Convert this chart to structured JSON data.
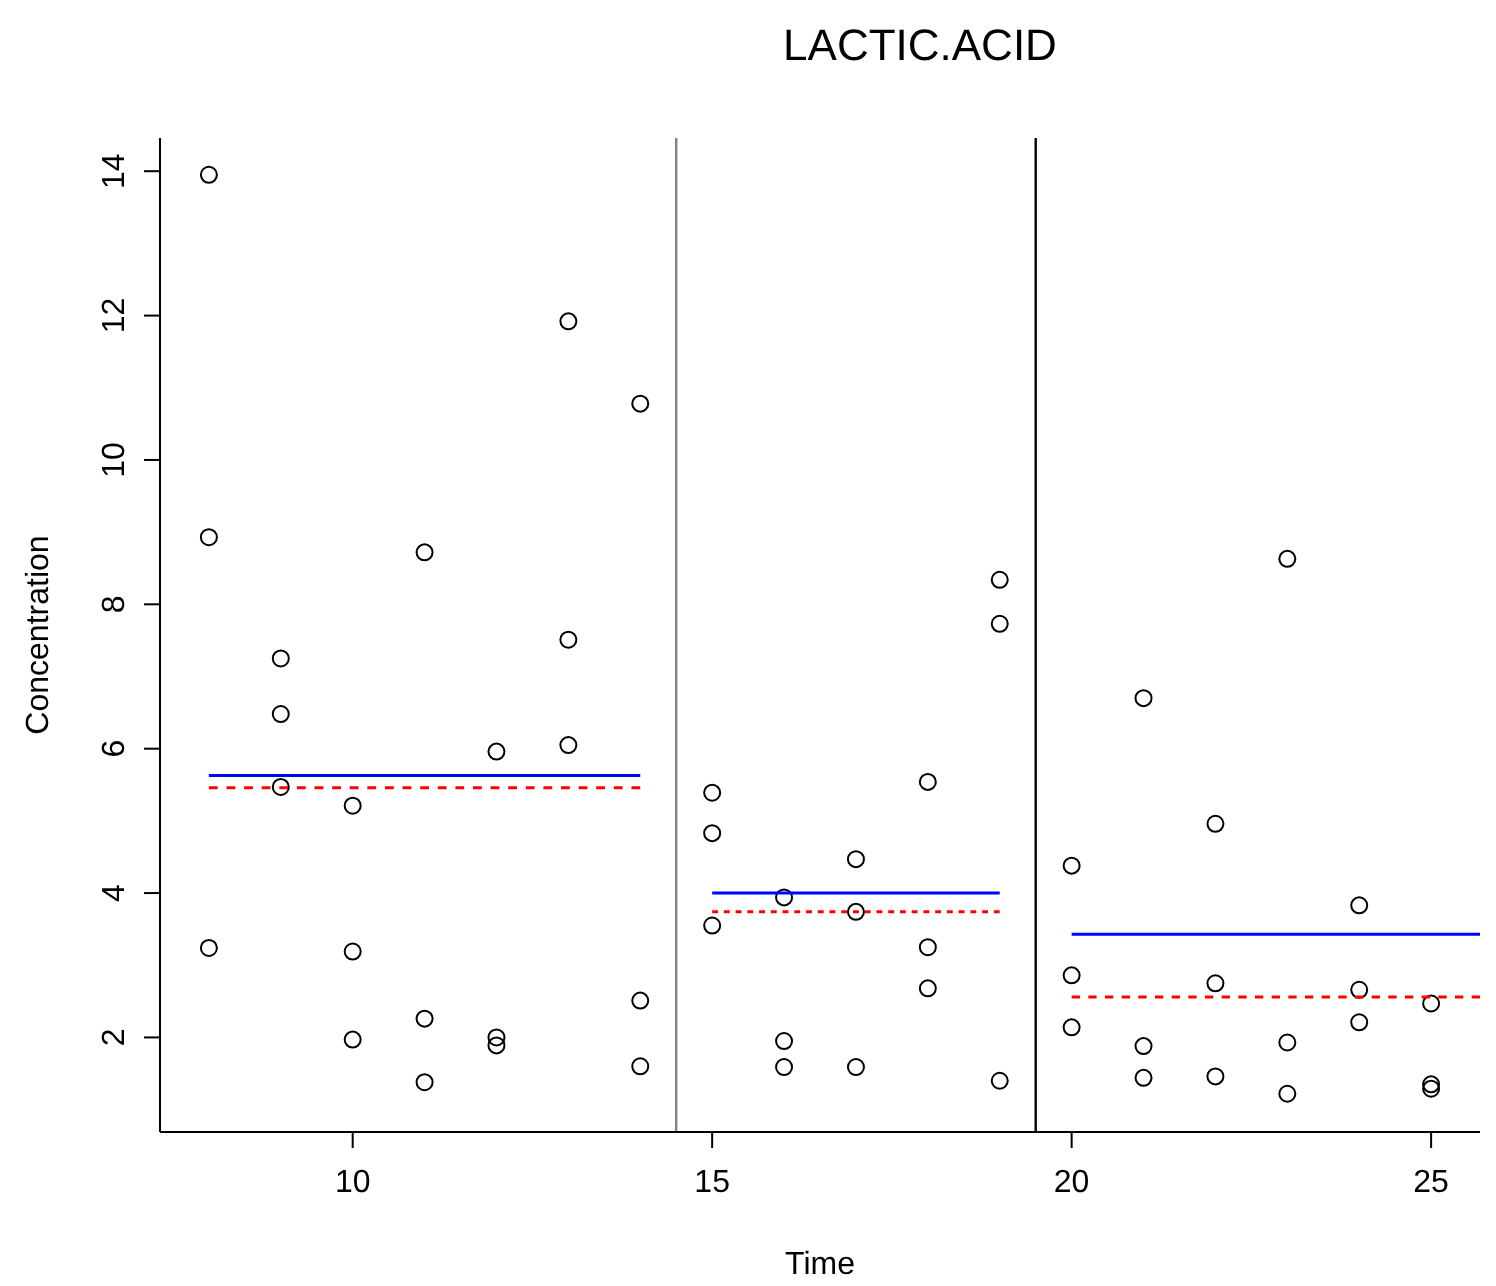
{
  "chart_data": {
    "type": "scatter",
    "title": "LACTIC.ACID",
    "xlabel": "Time",
    "ylabel": "Concentration",
    "xlim": [
      7.32,
      25.68
    ],
    "ylim": [
      0.69,
      14.46
    ],
    "xticks": [
      10,
      15,
      20,
      25
    ],
    "yticks": [
      2,
      4,
      6,
      8,
      10,
      12,
      14
    ],
    "series": [
      {
        "marker": "circle",
        "color": "#000000",
        "x": [
          8,
          8,
          8,
          9,
          9,
          9,
          10,
          10,
          10,
          11,
          11,
          11,
          12,
          12,
          12,
          13,
          13,
          13,
          14,
          14,
          14,
          15,
          15,
          15,
          16,
          16,
          16,
          17,
          17,
          17,
          18,
          18,
          18,
          19,
          19,
          19,
          20,
          20,
          20,
          21,
          21,
          21,
          22,
          22,
          22,
          23,
          23,
          23,
          24,
          24,
          24,
          25,
          25,
          25
        ],
        "values": [
          13.95,
          8.93,
          3.24,
          7.25,
          6.48,
          5.47,
          5.21,
          3.19,
          1.97,
          8.72,
          2.26,
          1.38,
          5.96,
          2.0,
          1.89,
          11.92,
          7.51,
          6.05,
          10.78,
          2.51,
          1.6,
          5.39,
          4.83,
          3.55,
          3.94,
          1.95,
          1.59,
          4.47,
          3.74,
          1.59,
          5.54,
          3.25,
          2.68,
          8.34,
          7.73,
          1.4,
          4.38,
          2.86,
          2.14,
          6.7,
          1.88,
          1.44,
          4.96,
          2.75,
          1.46,
          8.63,
          1.93,
          1.22,
          3.83,
          2.66,
          2.21,
          2.47,
          1.35,
          1.29
        ]
      },
      {
        "type": "line",
        "color": "#0000ff",
        "line_style": "solid",
        "x": [
          8,
          14
        ],
        "values": [
          5.63,
          5.63
        ]
      },
      {
        "type": "line",
        "color": "#ff0000",
        "line_style": "dotted",
        "x": [
          8,
          14
        ],
        "values": [
          5.46,
          5.46
        ]
      },
      {
        "type": "line",
        "color": "#0000ff",
        "line_style": "solid",
        "x": [
          15,
          19
        ],
        "values": [
          4.0,
          4.0
        ]
      },
      {
        "type": "line",
        "color": "#ff0000",
        "line_style": "dotted",
        "x": [
          15,
          19
        ],
        "values": [
          3.74,
          3.74
        ]
      },
      {
        "type": "line",
        "color": "#0000ff",
        "line_style": "solid",
        "x": [
          20,
          25.68
        ],
        "values": [
          3.43,
          3.43
        ]
      },
      {
        "type": "line",
        "color": "#ff0000",
        "line_style": "dotted",
        "x": [
          20,
          25.68
        ],
        "values": [
          2.56,
          2.56
        ]
      }
    ],
    "ref_lines": [
      {
        "axis": "x",
        "value": 14.5,
        "color": "#808080"
      },
      {
        "axis": "x",
        "value": 19.5,
        "color": "#000000"
      }
    ]
  }
}
